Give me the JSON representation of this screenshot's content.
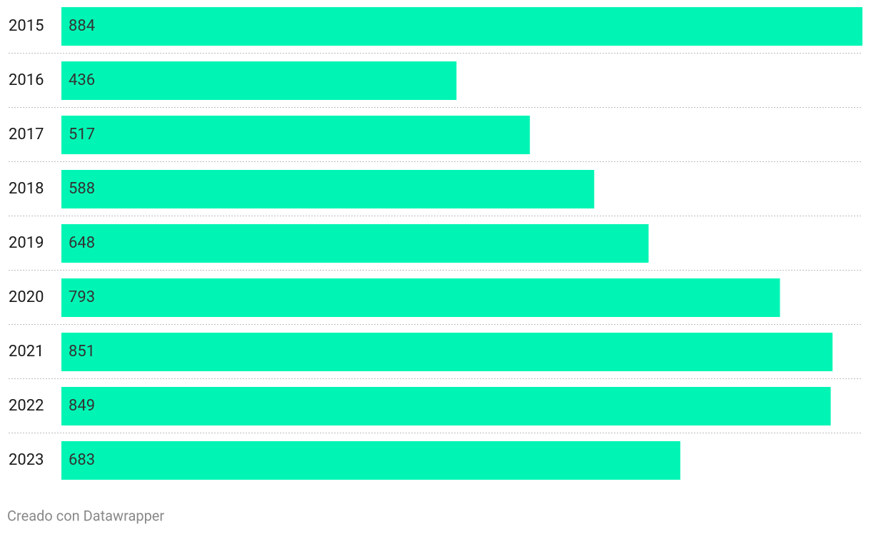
{
  "chart_data": {
    "type": "bar",
    "orientation": "horizontal",
    "categories": [
      "2015",
      "2016",
      "2017",
      "2018",
      "2019",
      "2020",
      "2021",
      "2022",
      "2023"
    ],
    "values": [
      884,
      436,
      517,
      588,
      648,
      793,
      851,
      849,
      683
    ],
    "color": "#00f5b4",
    "credit": "Creado con Datawrapper"
  }
}
